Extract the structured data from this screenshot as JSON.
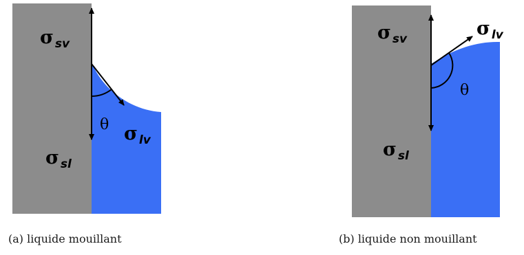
{
  "panels": [
    {
      "caption": "(a) liquide mouillant",
      "labels": {
        "sigma_sv": {
          "symbol": "σ",
          "sub": "sv"
        },
        "sigma_sl": {
          "symbol": "σ",
          "sub": "sl"
        },
        "sigma_lv": {
          "symbol": "σ",
          "sub": "lv"
        },
        "theta": "θ"
      }
    },
    {
      "caption": "(b) liquide non mouillant",
      "labels": {
        "sigma_sv": {
          "symbol": "σ",
          "sub": "sv"
        },
        "sigma_sl": {
          "symbol": "σ",
          "sub": "sl"
        },
        "sigma_lv": {
          "symbol": "σ",
          "sub": "lv"
        },
        "theta": "θ"
      }
    }
  ],
  "colors": {
    "solid": "#8c8c8c",
    "liquid": "#3a6ff5",
    "arrow": "#000000"
  }
}
